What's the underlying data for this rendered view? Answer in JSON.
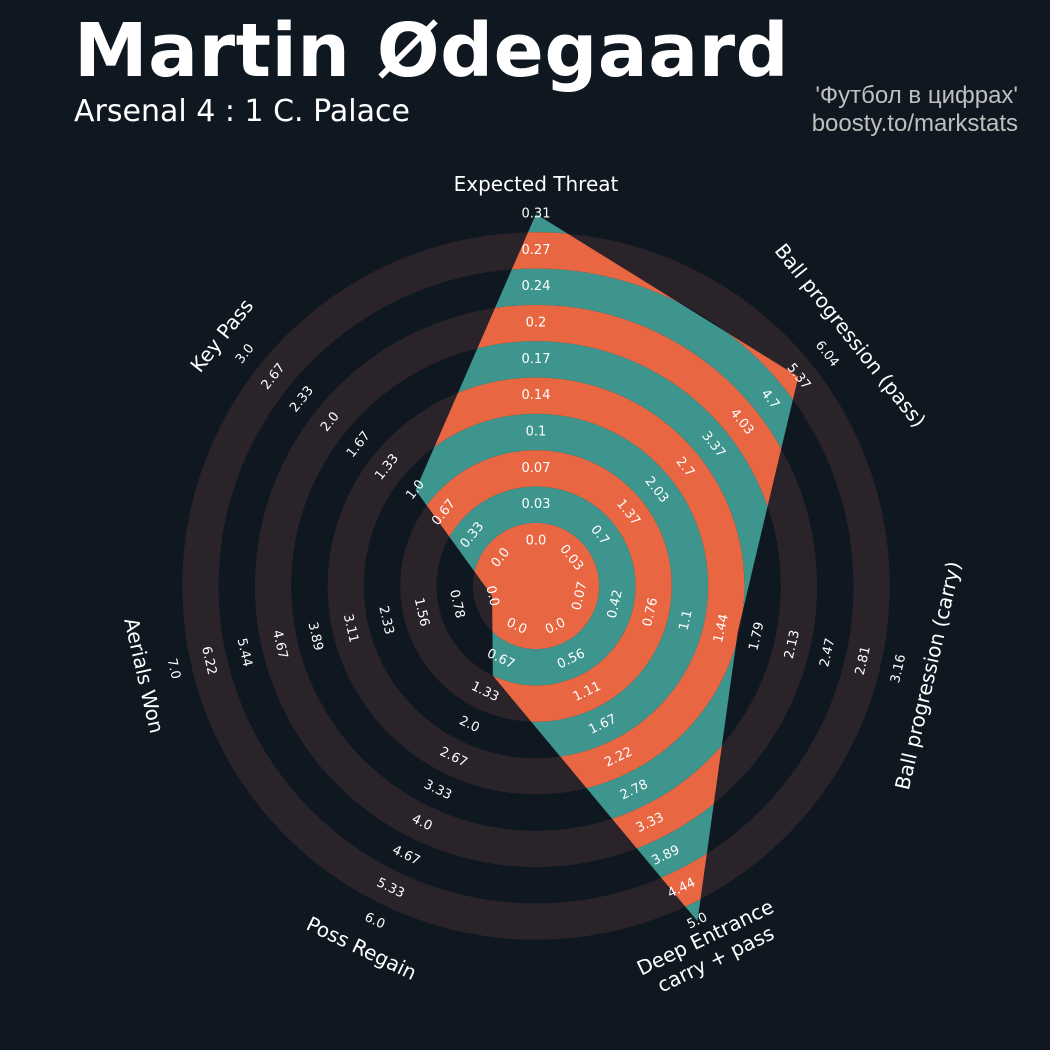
{
  "header": {
    "title": "Martin Ødegaard",
    "subtitle": "Arsenal 4 : 1 C. Palace",
    "credit_line1": "'Футбол в цифрах'",
    "credit_line2": "boosty.to/markstats"
  },
  "colors": {
    "background": "#0f1821",
    "ring_dark": "#2a2329",
    "fill_teal": "#3d958e",
    "fill_orange": "#e86641",
    "text": "#ffffff"
  },
  "chart_data": {
    "type": "radar",
    "title": "Martin Ødegaard",
    "parameters": [
      {
        "name": "Expected Threat",
        "lines": [
          "Expected Threat"
        ],
        "value": 0.31,
        "min": 0.0,
        "max": 0.31,
        "ticks": [
          "0.0",
          "0.03",
          "0.07",
          "0.1",
          "0.14",
          "0.17",
          "0.2",
          "0.24",
          "0.27",
          "0.31"
        ]
      },
      {
        "name": "Ball progression (pass)",
        "lines": [
          "Ball progression (pass)"
        ],
        "value": 5.37,
        "min": 0.03,
        "max": 6.04,
        "ticks": [
          "0.03",
          "0.7",
          "1.37",
          "2.03",
          "2.7",
          "3.37",
          "4.03",
          "4.7",
          "5.37",
          "6.04"
        ]
      },
      {
        "name": "Ball progression (carry)",
        "lines": [
          "Ball progression (carry)"
        ],
        "value": 1.6,
        "min": 0.07,
        "max": 3.16,
        "ticks": [
          "0.07",
          "0.42",
          "0.76",
          "1.1",
          "1.44",
          "1.79",
          "2.13",
          "2.47",
          "2.81",
          "3.16"
        ]
      },
      {
        "name": "Deep Entrance carry + pass",
        "lines": [
          "Deep Entrance",
          "carry + pass"
        ],
        "value": 5.0,
        "min": 0.0,
        "max": 5.0,
        "ticks": [
          "0.0",
          "0.56",
          "1.11",
          "1.67",
          "2.22",
          "2.78",
          "3.33",
          "3.89",
          "4.44",
          "5.0"
        ]
      },
      {
        "name": "Poss Regain",
        "lines": [
          "Poss Regain"
        ],
        "value": 1.0,
        "min": 0.0,
        "max": 6.0,
        "ticks": [
          "0.0",
          "0.67",
          "1.33",
          "2.0",
          "2.67",
          "3.33",
          "4.0",
          "4.67",
          "5.33",
          "6.0"
        ]
      },
      {
        "name": "Aerials Won",
        "lines": [
          "Aerials Won"
        ],
        "value": 0.0,
        "min": 0.0,
        "max": 7.0,
        "ticks": [
          "0.0",
          "0.78",
          "1.56",
          "2.33",
          "3.11",
          "3.89",
          "4.67",
          "5.44",
          "6.22",
          "7.0"
        ]
      },
      {
        "name": "Key Pass",
        "lines": [
          "Key Pass"
        ],
        "value": 1.0,
        "min": 0.0,
        "max": 3.0,
        "ticks": [
          "0.0",
          "0.33",
          "0.67",
          "1.0",
          "1.33",
          "1.67",
          "2.0",
          "2.33",
          "2.67",
          "3.0"
        ]
      }
    ]
  }
}
